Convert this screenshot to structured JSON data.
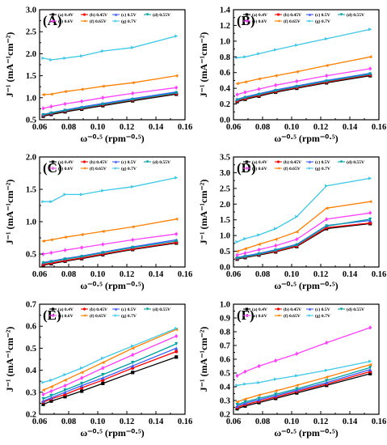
{
  "style": {
    "series_colors": [
      "#000000",
      "#ff0000",
      "#3b5bff",
      "#00a0a0",
      "#ff40ff",
      "#ff7f00",
      "#3cc8e8"
    ],
    "markers": [
      "square",
      "circle",
      "triangle-up",
      "triangle-down",
      "diamond",
      "triangle-left",
      "triangle-right"
    ]
  },
  "chart_data": [
    {
      "type": "line",
      "panel_label": "(A)",
      "xlabel": "ω⁻⁰·⁵ (rpm⁻⁰·⁵)",
      "ylabel": "J⁻¹ (mA⁻¹cm⁻²)",
      "xlim": [
        0.06,
        0.16
      ],
      "ylim": [
        0.5,
        3.0
      ],
      "xticks": [
        "0.06",
        "0.08",
        "0.10",
        "0.12",
        "0.14",
        "0.16"
      ],
      "yticks": [
        "0.5",
        "1.0",
        "1.5",
        "2.0",
        "2.5",
        "3.0"
      ],
      "x": [
        0.0625,
        0.068,
        0.0775,
        0.089,
        0.1035,
        0.124,
        0.154
      ],
      "series": [
        {
          "name": "(a) 0.4V",
          "values": [
            0.58,
            0.62,
            0.68,
            0.74,
            0.82,
            0.93,
            1.08
          ]
        },
        {
          "name": "(b) 0.45V",
          "values": [
            0.6,
            0.64,
            0.7,
            0.76,
            0.84,
            0.95,
            1.1
          ]
        },
        {
          "name": "(c) 0.5V",
          "values": [
            0.62,
            0.66,
            0.72,
            0.79,
            0.87,
            0.98,
            1.13
          ]
        },
        {
          "name": "(d) 0.55V",
          "values": [
            0.61,
            0.65,
            0.71,
            0.77,
            0.85,
            0.96,
            1.11
          ]
        },
        {
          "name": "(e) 0.6V",
          "values": [
            0.76,
            0.8,
            0.86,
            0.92,
            1.0,
            1.1,
            1.23
          ]
        },
        {
          "name": "(f) 0.65V",
          "values": [
            1.07,
            1.08,
            1.14,
            1.19,
            1.26,
            1.34,
            1.5
          ]
        },
        {
          "name": "(g) 0.7V",
          "values": [
            1.9,
            1.86,
            1.9,
            1.95,
            2.06,
            2.14,
            2.4
          ]
        }
      ]
    },
    {
      "type": "line",
      "panel_label": "(B)",
      "xlabel": "ω⁻⁰·⁵ (rpm⁻⁰·⁵)",
      "ylabel": "J⁻¹ (mA⁻¹cm⁻²)",
      "xlim": [
        0.06,
        0.16
      ],
      "ylim": [
        0.0,
        1.4
      ],
      "xticks": [
        "0.06",
        "0.08",
        "0.10",
        "0.12",
        "0.14",
        "0.16"
      ],
      "yticks": [
        "0.0",
        "0.2",
        "0.4",
        "0.6",
        "0.8",
        "1.0",
        "1.2",
        "1.4"
      ],
      "x": [
        0.0625,
        0.068,
        0.0775,
        0.089,
        0.1035,
        0.124,
        0.154
      ],
      "series": [
        {
          "name": "(a) 0.4V",
          "values": [
            0.23,
            0.26,
            0.3,
            0.35,
            0.4,
            0.47,
            0.56
          ]
        },
        {
          "name": "(b) 0.45V",
          "values": [
            0.24,
            0.27,
            0.31,
            0.36,
            0.41,
            0.48,
            0.57
          ]
        },
        {
          "name": "(c) 0.5V",
          "values": [
            0.26,
            0.29,
            0.33,
            0.38,
            0.43,
            0.5,
            0.59
          ]
        },
        {
          "name": "(d) 0.55V",
          "values": [
            0.25,
            0.28,
            0.32,
            0.37,
            0.42,
            0.49,
            0.58
          ]
        },
        {
          "name": "(e) 0.6V",
          "values": [
            0.32,
            0.35,
            0.39,
            0.44,
            0.49,
            0.56,
            0.65
          ]
        },
        {
          "name": "(f) 0.65V",
          "values": [
            0.46,
            0.48,
            0.52,
            0.56,
            0.61,
            0.69,
            0.8
          ]
        },
        {
          "name": "(g) 0.7V",
          "values": [
            0.79,
            0.8,
            0.84,
            0.89,
            0.95,
            1.03,
            1.15
          ]
        }
      ]
    },
    {
      "type": "line",
      "panel_label": "(C)",
      "xlabel": "ω⁻⁰·⁵ (rpm⁻⁰·⁵)",
      "ylabel": "J⁻¹ (mA⁻¹cm⁻²)",
      "xlim": [
        0.06,
        0.16
      ],
      "ylim": [
        0.3,
        2.0
      ],
      "xticks": [
        "0.06",
        "0.08",
        "0.10",
        "0.12",
        "0.14",
        "0.16"
      ],
      "yticks": [
        "0.5",
        "1.0",
        "1.5",
        "2.0"
      ],
      "x": [
        0.0625,
        0.068,
        0.0775,
        0.089,
        0.1035,
        0.124,
        0.154
      ],
      "series": [
        {
          "name": "(a) 0.4V",
          "values": [
            0.33,
            0.35,
            0.39,
            0.43,
            0.49,
            0.57,
            0.67
          ]
        },
        {
          "name": "(b) 0.45V",
          "values": [
            0.34,
            0.36,
            0.4,
            0.44,
            0.5,
            0.58,
            0.68
          ]
        },
        {
          "name": "(c) 0.5V",
          "values": [
            0.37,
            0.39,
            0.43,
            0.47,
            0.53,
            0.61,
            0.72
          ]
        },
        {
          "name": "(d) 0.55V",
          "values": [
            0.36,
            0.38,
            0.42,
            0.46,
            0.52,
            0.6,
            0.7
          ]
        },
        {
          "name": "(e) 0.6V",
          "values": [
            0.5,
            0.52,
            0.56,
            0.6,
            0.65,
            0.72,
            0.81
          ]
        },
        {
          "name": "(f) 0.65V",
          "values": [
            0.7,
            0.72,
            0.76,
            0.8,
            0.85,
            0.92,
            1.04
          ]
        },
        {
          "name": "(g) 0.7V",
          "values": [
            1.31,
            1.31,
            1.42,
            1.42,
            1.48,
            1.54,
            1.68
          ]
        }
      ]
    },
    {
      "type": "line",
      "panel_label": "(D)",
      "xlabel": "ω⁻⁰·⁵ (rpm⁻⁰·⁵)",
      "ylabel": "J⁻¹ (mA⁻¹cm⁻²)",
      "xlim": [
        0.06,
        0.16
      ],
      "ylim": [
        0.0,
        3.5
      ],
      "xticks": [
        "0.06",
        "0.08",
        "0.10",
        "0.12",
        "0.14",
        "0.16"
      ],
      "yticks": [
        "0.0",
        "0.5",
        "1.0",
        "1.5",
        "2.0",
        "2.5",
        "3.0",
        "3.5"
      ],
      "x": [
        0.0625,
        0.068,
        0.0775,
        0.089,
        0.1035,
        0.124,
        0.154
      ],
      "series": [
        {
          "name": "(a) 0.4V",
          "values": [
            0.25,
            0.3,
            0.38,
            0.48,
            0.65,
            1.22,
            1.38
          ]
        },
        {
          "name": "(b) 0.45V",
          "values": [
            0.27,
            0.32,
            0.4,
            0.5,
            0.67,
            1.25,
            1.4
          ]
        },
        {
          "name": "(c) 0.5V",
          "values": [
            0.3,
            0.35,
            0.43,
            0.55,
            0.72,
            1.32,
            1.48
          ]
        },
        {
          "name": "(d) 0.55V",
          "values": [
            0.28,
            0.33,
            0.41,
            0.53,
            0.7,
            1.3,
            1.52
          ]
        },
        {
          "name": "(e) 0.6V",
          "values": [
            0.38,
            0.44,
            0.55,
            0.68,
            0.88,
            1.52,
            1.72
          ]
        },
        {
          "name": "(f) 0.65V",
          "values": [
            0.5,
            0.58,
            0.72,
            0.88,
            1.12,
            1.87,
            2.08
          ]
        },
        {
          "name": "(g) 0.7V",
          "values": [
            0.8,
            0.9,
            1.02,
            1.22,
            1.6,
            2.58,
            2.82
          ]
        }
      ]
    },
    {
      "type": "line",
      "panel_label": "(E)",
      "xlabel": "ω⁻⁰·⁵ (rpm⁻⁰·⁵)",
      "ylabel": "J⁻¹ (mA⁻¹cm⁻²)",
      "xlim": [
        0.06,
        0.16
      ],
      "ylim": [
        0.2,
        0.7
      ],
      "xticks": [
        "0.06",
        "0.08",
        "0.10",
        "0.12",
        "0.14",
        "0.16"
      ],
      "yticks": [
        "0.2",
        "0.3",
        "0.4",
        "0.5",
        "0.6",
        "0.7"
      ],
      "x": [
        0.0625,
        0.068,
        0.0775,
        0.089,
        0.1035,
        0.124,
        0.154
      ],
      "series": [
        {
          "name": "(a) 0.4V",
          "values": [
            0.245,
            0.26,
            0.28,
            0.305,
            0.34,
            0.39,
            0.46
          ]
        },
        {
          "name": "(b) 0.45V",
          "values": [
            0.255,
            0.27,
            0.29,
            0.32,
            0.355,
            0.41,
            0.485
          ]
        },
        {
          "name": "(c) 0.5V",
          "values": [
            0.26,
            0.275,
            0.3,
            0.33,
            0.365,
            0.42,
            0.5
          ]
        },
        {
          "name": "(d) 0.55V",
          "values": [
            0.27,
            0.285,
            0.31,
            0.34,
            0.38,
            0.435,
            0.52
          ]
        },
        {
          "name": "(e) 0.6V",
          "values": [
            0.29,
            0.305,
            0.33,
            0.365,
            0.41,
            0.47,
            0.555
          ]
        },
        {
          "name": "(f) 0.65V",
          "values": [
            0.31,
            0.325,
            0.355,
            0.39,
            0.435,
            0.5,
            0.585
          ]
        },
        {
          "name": "(g) 0.7V",
          "values": [
            0.345,
            0.355,
            0.38,
            0.41,
            0.455,
            0.51,
            0.59
          ]
        }
      ]
    },
    {
      "type": "line",
      "panel_label": "(F)",
      "xlabel": "ω⁻⁰·⁵ (rpm⁻⁰·⁵)",
      "ylabel": "J⁻¹ (mA⁻¹cm⁻²)",
      "xlim": [
        0.06,
        0.16
      ],
      "ylim": [
        0.2,
        1.0
      ],
      "xticks": [
        "0.06",
        "0.08",
        "0.10",
        "0.12",
        "0.14",
        "0.16"
      ],
      "yticks": [
        "0.2",
        "0.3",
        "0.4",
        "0.5",
        "0.6",
        "0.7",
        "0.8",
        "0.9",
        "1.0"
      ],
      "x": [
        0.0625,
        0.068,
        0.0775,
        0.089,
        0.1035,
        0.124,
        0.154
      ],
      "series": [
        {
          "name": "(a) 0.4V",
          "values": [
            0.24,
            0.26,
            0.285,
            0.315,
            0.355,
            0.41,
            0.495
          ]
        },
        {
          "name": "(b) 0.45V",
          "values": [
            0.25,
            0.27,
            0.295,
            0.325,
            0.365,
            0.42,
            0.51
          ]
        },
        {
          "name": "(c) 0.5V",
          "values": [
            0.26,
            0.28,
            0.305,
            0.335,
            0.375,
            0.43,
            0.525
          ]
        },
        {
          "name": "(d) 0.55V",
          "values": [
            0.27,
            0.29,
            0.315,
            0.345,
            0.385,
            0.445,
            0.54
          ]
        },
        {
          "name": "(e) 0.6V",
          "values": [
            0.48,
            0.51,
            0.55,
            0.59,
            0.64,
            0.72,
            0.83
          ]
        },
        {
          "name": "(f) 0.65V",
          "values": [
            0.29,
            0.31,
            0.34,
            0.37,
            0.41,
            0.47,
            0.56
          ]
        },
        {
          "name": "(g) 0.7V",
          "values": [
            0.41,
            0.42,
            0.43,
            0.455,
            0.48,
            0.52,
            0.585
          ]
        }
      ]
    }
  ]
}
